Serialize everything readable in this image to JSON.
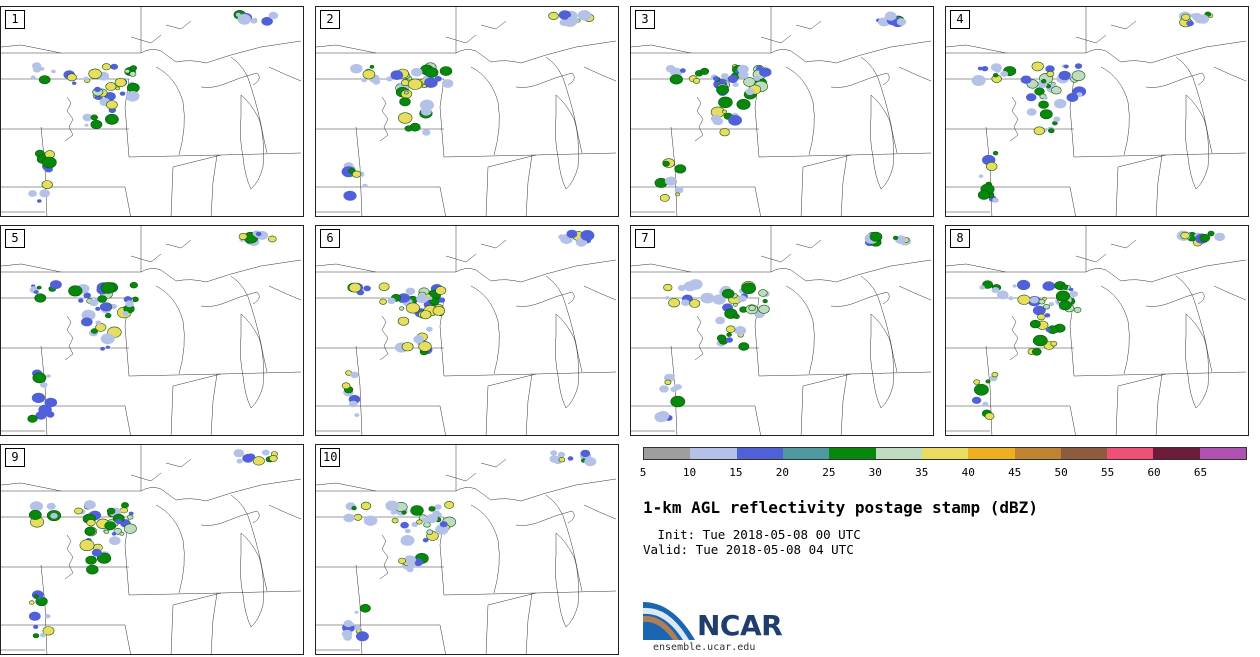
{
  "panels": [
    {
      "label": "1"
    },
    {
      "label": "2"
    },
    {
      "label": "3"
    },
    {
      "label": "4"
    },
    {
      "label": "5"
    },
    {
      "label": "6"
    },
    {
      "label": "7"
    },
    {
      "label": "8"
    },
    {
      "label": "9"
    },
    {
      "label": "10"
    }
  ],
  "colorbar": {
    "colors": [
      "#9e9e9e",
      "#b4c2e8",
      "#5060d8",
      "#4e9aa0",
      "#06880c",
      "#c0dcc0",
      "#eadc5e",
      "#eeb020",
      "#c08430",
      "#8e5c3c",
      "#f05078",
      "#6e1a3a",
      "#b050b0"
    ],
    "ticks": [
      "5",
      "10",
      "15",
      "20",
      "25",
      "30",
      "35",
      "40",
      "45",
      "50",
      "55",
      "60",
      "65"
    ]
  },
  "title": "1-km AGL reflectivity postage stamp (dBZ)",
  "init": " Init: Tue 2018-05-08 00 UTC",
  "valid": "Valid: Tue 2018-05-08 04 UTC",
  "logo": {
    "text": "NCAR",
    "site": "ensemble.ucar.edu"
  }
}
